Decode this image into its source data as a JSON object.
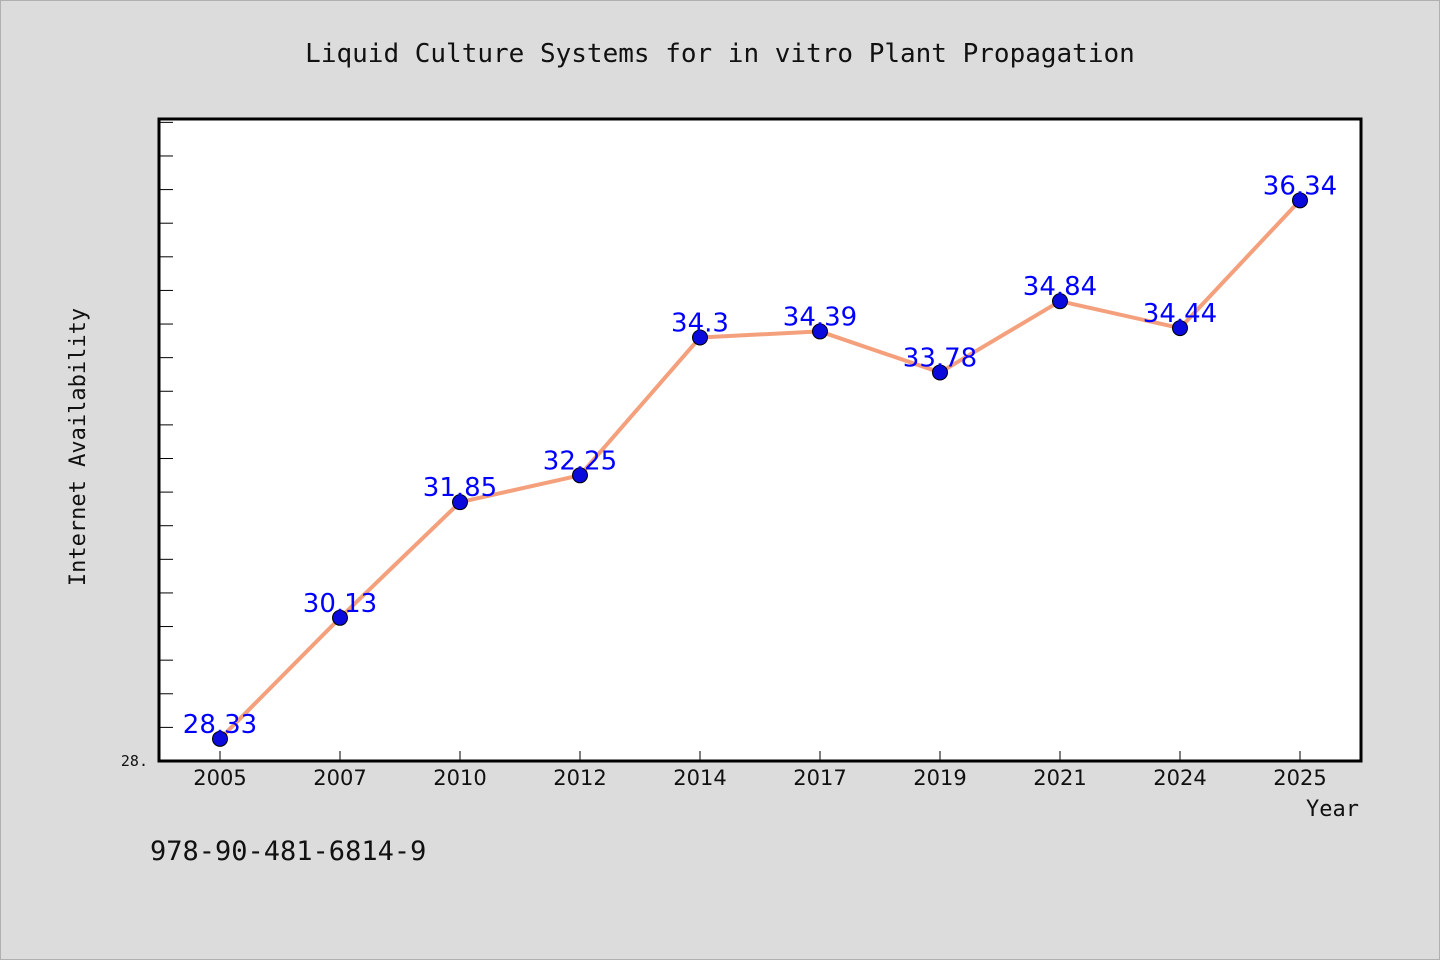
{
  "isbn": "978-90-481-6814-9",
  "chart_data": {
    "type": "line",
    "title": "Liquid Culture Systems for in vitro Plant Propagation",
    "xlabel": "Year",
    "ylabel": "Internet Availability",
    "categories": [
      "2005",
      "2007",
      "2010",
      "2012",
      "2014",
      "2017",
      "2019",
      "2021",
      "2024",
      "2025"
    ],
    "values": [
      28.33,
      30.13,
      31.85,
      32.25,
      34.3,
      34.39,
      33.78,
      34.84,
      34.44,
      36.34
    ],
    "value_labels": [
      "28.33",
      "30.13",
      "31.85",
      "32.25",
      "34.3",
      "34.39",
      "33.78",
      "34.84",
      "34.44",
      "36.34"
    ],
    "ylim": [
      28,
      37.55
    ],
    "y_tick_label": "28.",
    "grid": false,
    "legend": "none",
    "colors": {
      "line": "#f4a07c",
      "marker": "#0a0adc",
      "value_label": "#0000ff",
      "plot_bg": "#ffffff",
      "page_bg": "#dcdcdc"
    }
  }
}
